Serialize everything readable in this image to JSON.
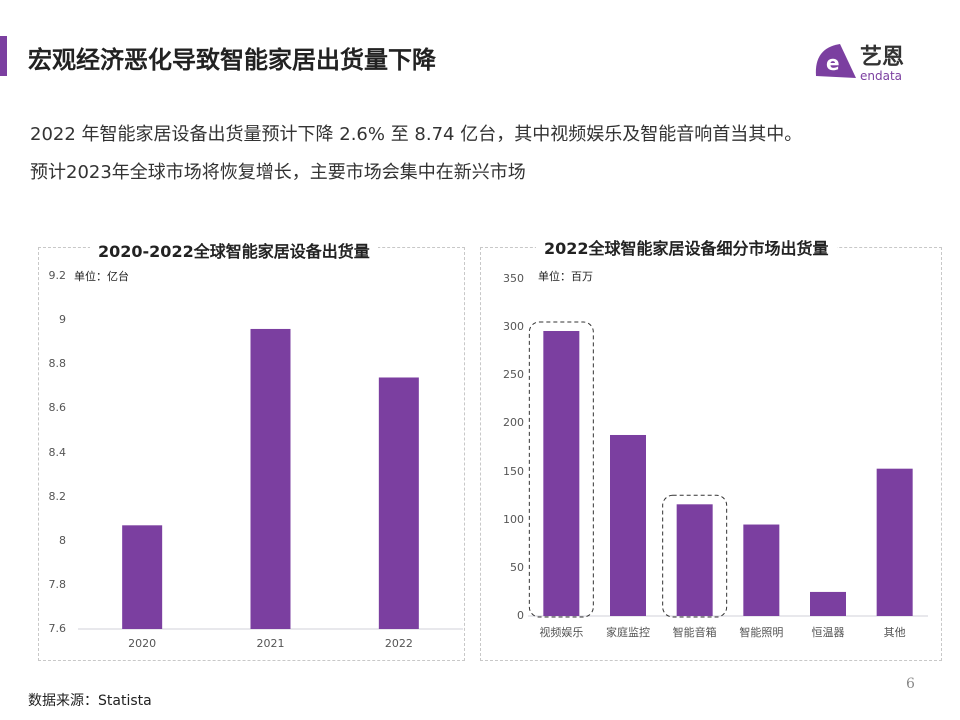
{
  "header": {
    "title": "宏观经济恶化导致智能家居出货量下降",
    "logo_text": "艺恩",
    "logo_sub": "endata",
    "accent": "#7b3fa0"
  },
  "intro": [
    "2022 年智能家居设备出货量预计下降  2.6% 至 8.74 亿台，其中视频娱乐及智能音响首当其中。",
    "预计2023年全球市场将恢复增长，主要市场会集中在新兴市场"
  ],
  "chart_data": [
    {
      "type": "bar",
      "title": "2020-2022全球智能家居设备出货量",
      "unit": "单位：亿台",
      "categories": [
        "2020",
        "2021",
        "2022"
      ],
      "values": [
        8.07,
        8.96,
        8.74
      ],
      "ylim": [
        7.6,
        9.2
      ],
      "yticks": [
        "7.6",
        "7.8",
        "8",
        "8.2",
        "8.4",
        "8.6",
        "8.8",
        "9",
        "9.2"
      ],
      "color": "#7b3fa0"
    },
    {
      "type": "bar",
      "title": "2022全球智能家居设备细分市场出货量",
      "unit": "单位：百万",
      "categories": [
        "视频娱乐",
        "家庭监控",
        "智能音箱",
        "智能照明",
        "恒温器",
        "其他"
      ],
      "values": [
        296,
        188,
        116,
        95,
        25,
        153
      ],
      "highlighted": [
        "视频娱乐",
        "智能音箱"
      ],
      "ylim": [
        0,
        350
      ],
      "yticks": [
        "0",
        "50",
        "100",
        "150",
        "200",
        "250",
        "300",
        "350"
      ],
      "color": "#7b3fa0"
    }
  ],
  "footer": {
    "source": "数据来源：Statista",
    "page": "6"
  }
}
